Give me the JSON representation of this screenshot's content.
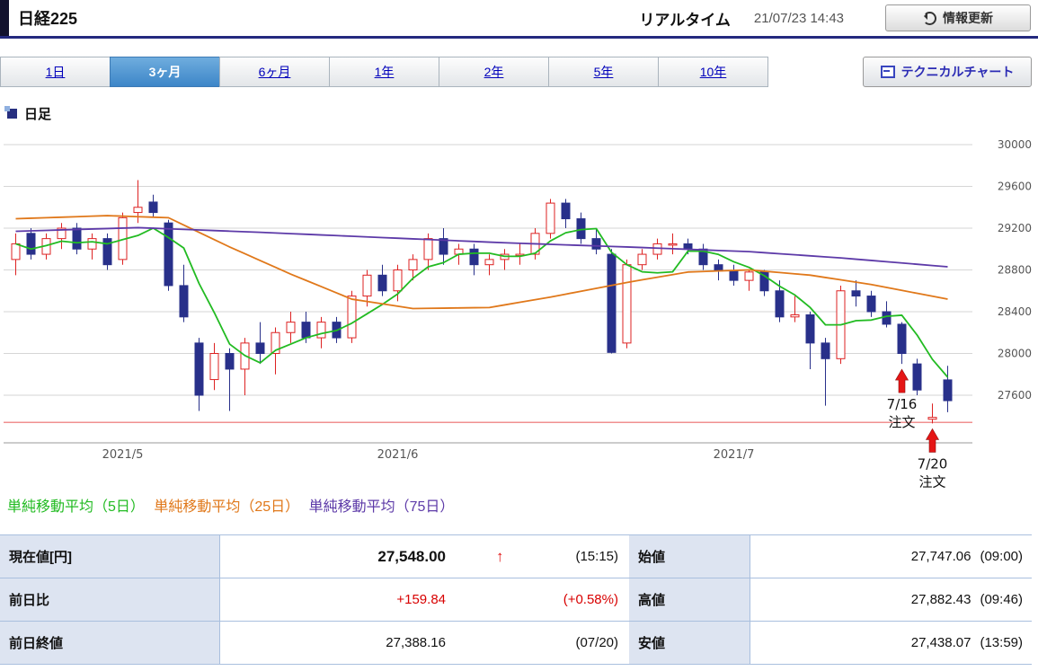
{
  "header": {
    "title": "日経225",
    "realtime_label": "リアルタイム",
    "timestamp": "21/07/23 14:43",
    "refresh_button": "情報更新",
    "refresh_icon": "refresh-circular-arrow"
  },
  "tabs": {
    "items": [
      {
        "label": "1日",
        "active": false
      },
      {
        "label": "3ヶ月",
        "active": true
      },
      {
        "label": "6ヶ月",
        "active": false
      },
      {
        "label": "1年",
        "active": false
      },
      {
        "label": "2年",
        "active": false
      },
      {
        "label": "5年",
        "active": false
      },
      {
        "label": "10年",
        "active": false
      }
    ],
    "technical_chart_button": "テクニカルチャート"
  },
  "section": {
    "label": "日足"
  },
  "legend": {
    "ma5": {
      "label": "単純移動平均（5日）",
      "color": "#22bb22"
    },
    "ma25": {
      "label": "単純移動平均（25日）",
      "color": "#e0781a"
    },
    "ma75": {
      "label": "単純移動平均（75日）",
      "color": "#5d3aa8"
    }
  },
  "chart_data": {
    "type": "candlestick",
    "title": "日経225 日足 3ヶ月",
    "ylim": [
      27150,
      30060
    ],
    "y_ticks": [
      30000,
      29600,
      29200,
      28800,
      28400,
      28000,
      27600
    ],
    "x_ticks": [
      {
        "index": 7,
        "label": "2021/5"
      },
      {
        "index": 25,
        "label": "2021/6"
      },
      {
        "index": 47,
        "label": "2021/7"
      }
    ],
    "horizontal_line": {
      "value": 27340,
      "color": "#f09090"
    },
    "colors": {
      "up": "#dd2222",
      "down": "#28308a"
    },
    "candles_ohlc": [
      [
        28900,
        29150,
        28750,
        29050
      ],
      [
        29150,
        29200,
        28900,
        28950
      ],
      [
        28950,
        29150,
        28900,
        29100
      ],
      [
        29100,
        29250,
        29000,
        29200
      ],
      [
        29200,
        29250,
        28950,
        29000
      ],
      [
        29000,
        29150,
        28900,
        29100
      ],
      [
        29100,
        29150,
        28800,
        28850
      ],
      [
        28900,
        29350,
        28850,
        29300
      ],
      [
        29350,
        29660,
        29250,
        29400
      ],
      [
        29450,
        29520,
        29300,
        29350
      ],
      [
        29250,
        29280,
        28600,
        28650
      ],
      [
        28650,
        28850,
        28300,
        28350
      ],
      [
        28100,
        28150,
        27450,
        27600
      ],
      [
        27750,
        28100,
        27650,
        28000
      ],
      [
        28000,
        28050,
        27450,
        27850
      ],
      [
        27850,
        28150,
        27600,
        28100
      ],
      [
        28100,
        28300,
        27900,
        28000
      ],
      [
        28000,
        28250,
        27800,
        28200
      ],
      [
        28200,
        28400,
        28100,
        28300
      ],
      [
        28300,
        28400,
        28100,
        28150
      ],
      [
        28150,
        28350,
        28050,
        28300
      ],
      [
        28300,
        28350,
        28100,
        28150
      ],
      [
        28150,
        28600,
        28100,
        28550
      ],
      [
        28550,
        28800,
        28450,
        28750
      ],
      [
        28750,
        28850,
        28550,
        28600
      ],
      [
        28600,
        28850,
        28500,
        28800
      ],
      [
        28800,
        28950,
        28700,
        28900
      ],
      [
        28900,
        29150,
        28800,
        29100
      ],
      [
        29100,
        29200,
        28850,
        28950
      ],
      [
        28950,
        29050,
        28850,
        29000
      ],
      [
        29000,
        29050,
        28750,
        28850
      ],
      [
        28850,
        28950,
        28750,
        28900
      ],
      [
        28900,
        29000,
        28800,
        28950
      ],
      [
        28950,
        29050,
        28850,
        28950
      ],
      [
        28950,
        29200,
        28900,
        29150
      ],
      [
        29150,
        29480,
        29100,
        29440
      ],
      [
        29440,
        29480,
        29200,
        29290
      ],
      [
        29290,
        29350,
        29050,
        29100
      ],
      [
        29100,
        29200,
        28950,
        29000
      ],
      [
        28950,
        29000,
        28000,
        28010
      ],
      [
        28100,
        28900,
        28050,
        28850
      ],
      [
        28850,
        29000,
        28800,
        28950
      ],
      [
        28950,
        29100,
        28900,
        29050
      ],
      [
        29050,
        29150,
        28950,
        29050
      ],
      [
        29050,
        29100,
        28950,
        29000
      ],
      [
        29000,
        29050,
        28800,
        28850
      ],
      [
        28850,
        28900,
        28700,
        28790
      ],
      [
        28790,
        28850,
        28650,
        28700
      ],
      [
        28700,
        28800,
        28600,
        28780
      ],
      [
        28780,
        28800,
        28550,
        28600
      ],
      [
        28600,
        28700,
        28300,
        28350
      ],
      [
        28350,
        28550,
        28300,
        28370
      ],
      [
        28370,
        28400,
        27850,
        28100
      ],
      [
        28100,
        28150,
        27500,
        27950
      ],
      [
        27950,
        28650,
        27900,
        28600
      ],
      [
        28600,
        28700,
        28450,
        28550
      ],
      [
        28550,
        28600,
        28350,
        28400
      ],
      [
        28400,
        28500,
        28250,
        28280
      ],
      [
        28280,
        28300,
        27900,
        28000
      ],
      [
        27900,
        27950,
        27600,
        27650
      ],
      [
        27370,
        27520,
        27330,
        27388
      ],
      [
        27747,
        27882,
        27438,
        27548
      ]
    ],
    "ma5_window": 5,
    "ma25_points": [
      [
        0,
        29290
      ],
      [
        6,
        29320
      ],
      [
        10,
        29300
      ],
      [
        14,
        29020
      ],
      [
        18,
        28760
      ],
      [
        22,
        28520
      ],
      [
        26,
        28430
      ],
      [
        31,
        28440
      ],
      [
        35,
        28540
      ],
      [
        40,
        28680
      ],
      [
        44,
        28780
      ],
      [
        48,
        28800
      ],
      [
        52,
        28750
      ],
      [
        56,
        28660
      ],
      [
        61,
        28520
      ]
    ],
    "ma75_points": [
      [
        0,
        29170
      ],
      [
        8,
        29205
      ],
      [
        16,
        29160
      ],
      [
        24,
        29110
      ],
      [
        32,
        29060
      ],
      [
        40,
        29020
      ],
      [
        48,
        28975
      ],
      [
        54,
        28915
      ],
      [
        61,
        28830
      ]
    ],
    "annotations": [
      {
        "candle_index": 58,
        "lines": [
          "7/16",
          "注文"
        ]
      },
      {
        "candle_index": 60,
        "lines": [
          "7/20",
          "注文"
        ]
      }
    ]
  },
  "quote": {
    "left": [
      {
        "label": "現在値[円]",
        "value": "27,548.00",
        "arrow": "↑",
        "extra": "(15:15)"
      },
      {
        "label": "前日比",
        "value": "+159.84",
        "extra": "(+0.58%)"
      },
      {
        "label": "前日終値",
        "value": "27,388.16",
        "extra": "(07/20)"
      }
    ],
    "right": [
      {
        "label": "始値",
        "value": "27,747.06",
        "time": "(09:00)"
      },
      {
        "label": "高値",
        "value": "27,882.43",
        "time": "(09:46)"
      },
      {
        "label": "安値",
        "value": "27,438.07",
        "time": "(13:59)"
      }
    ]
  }
}
